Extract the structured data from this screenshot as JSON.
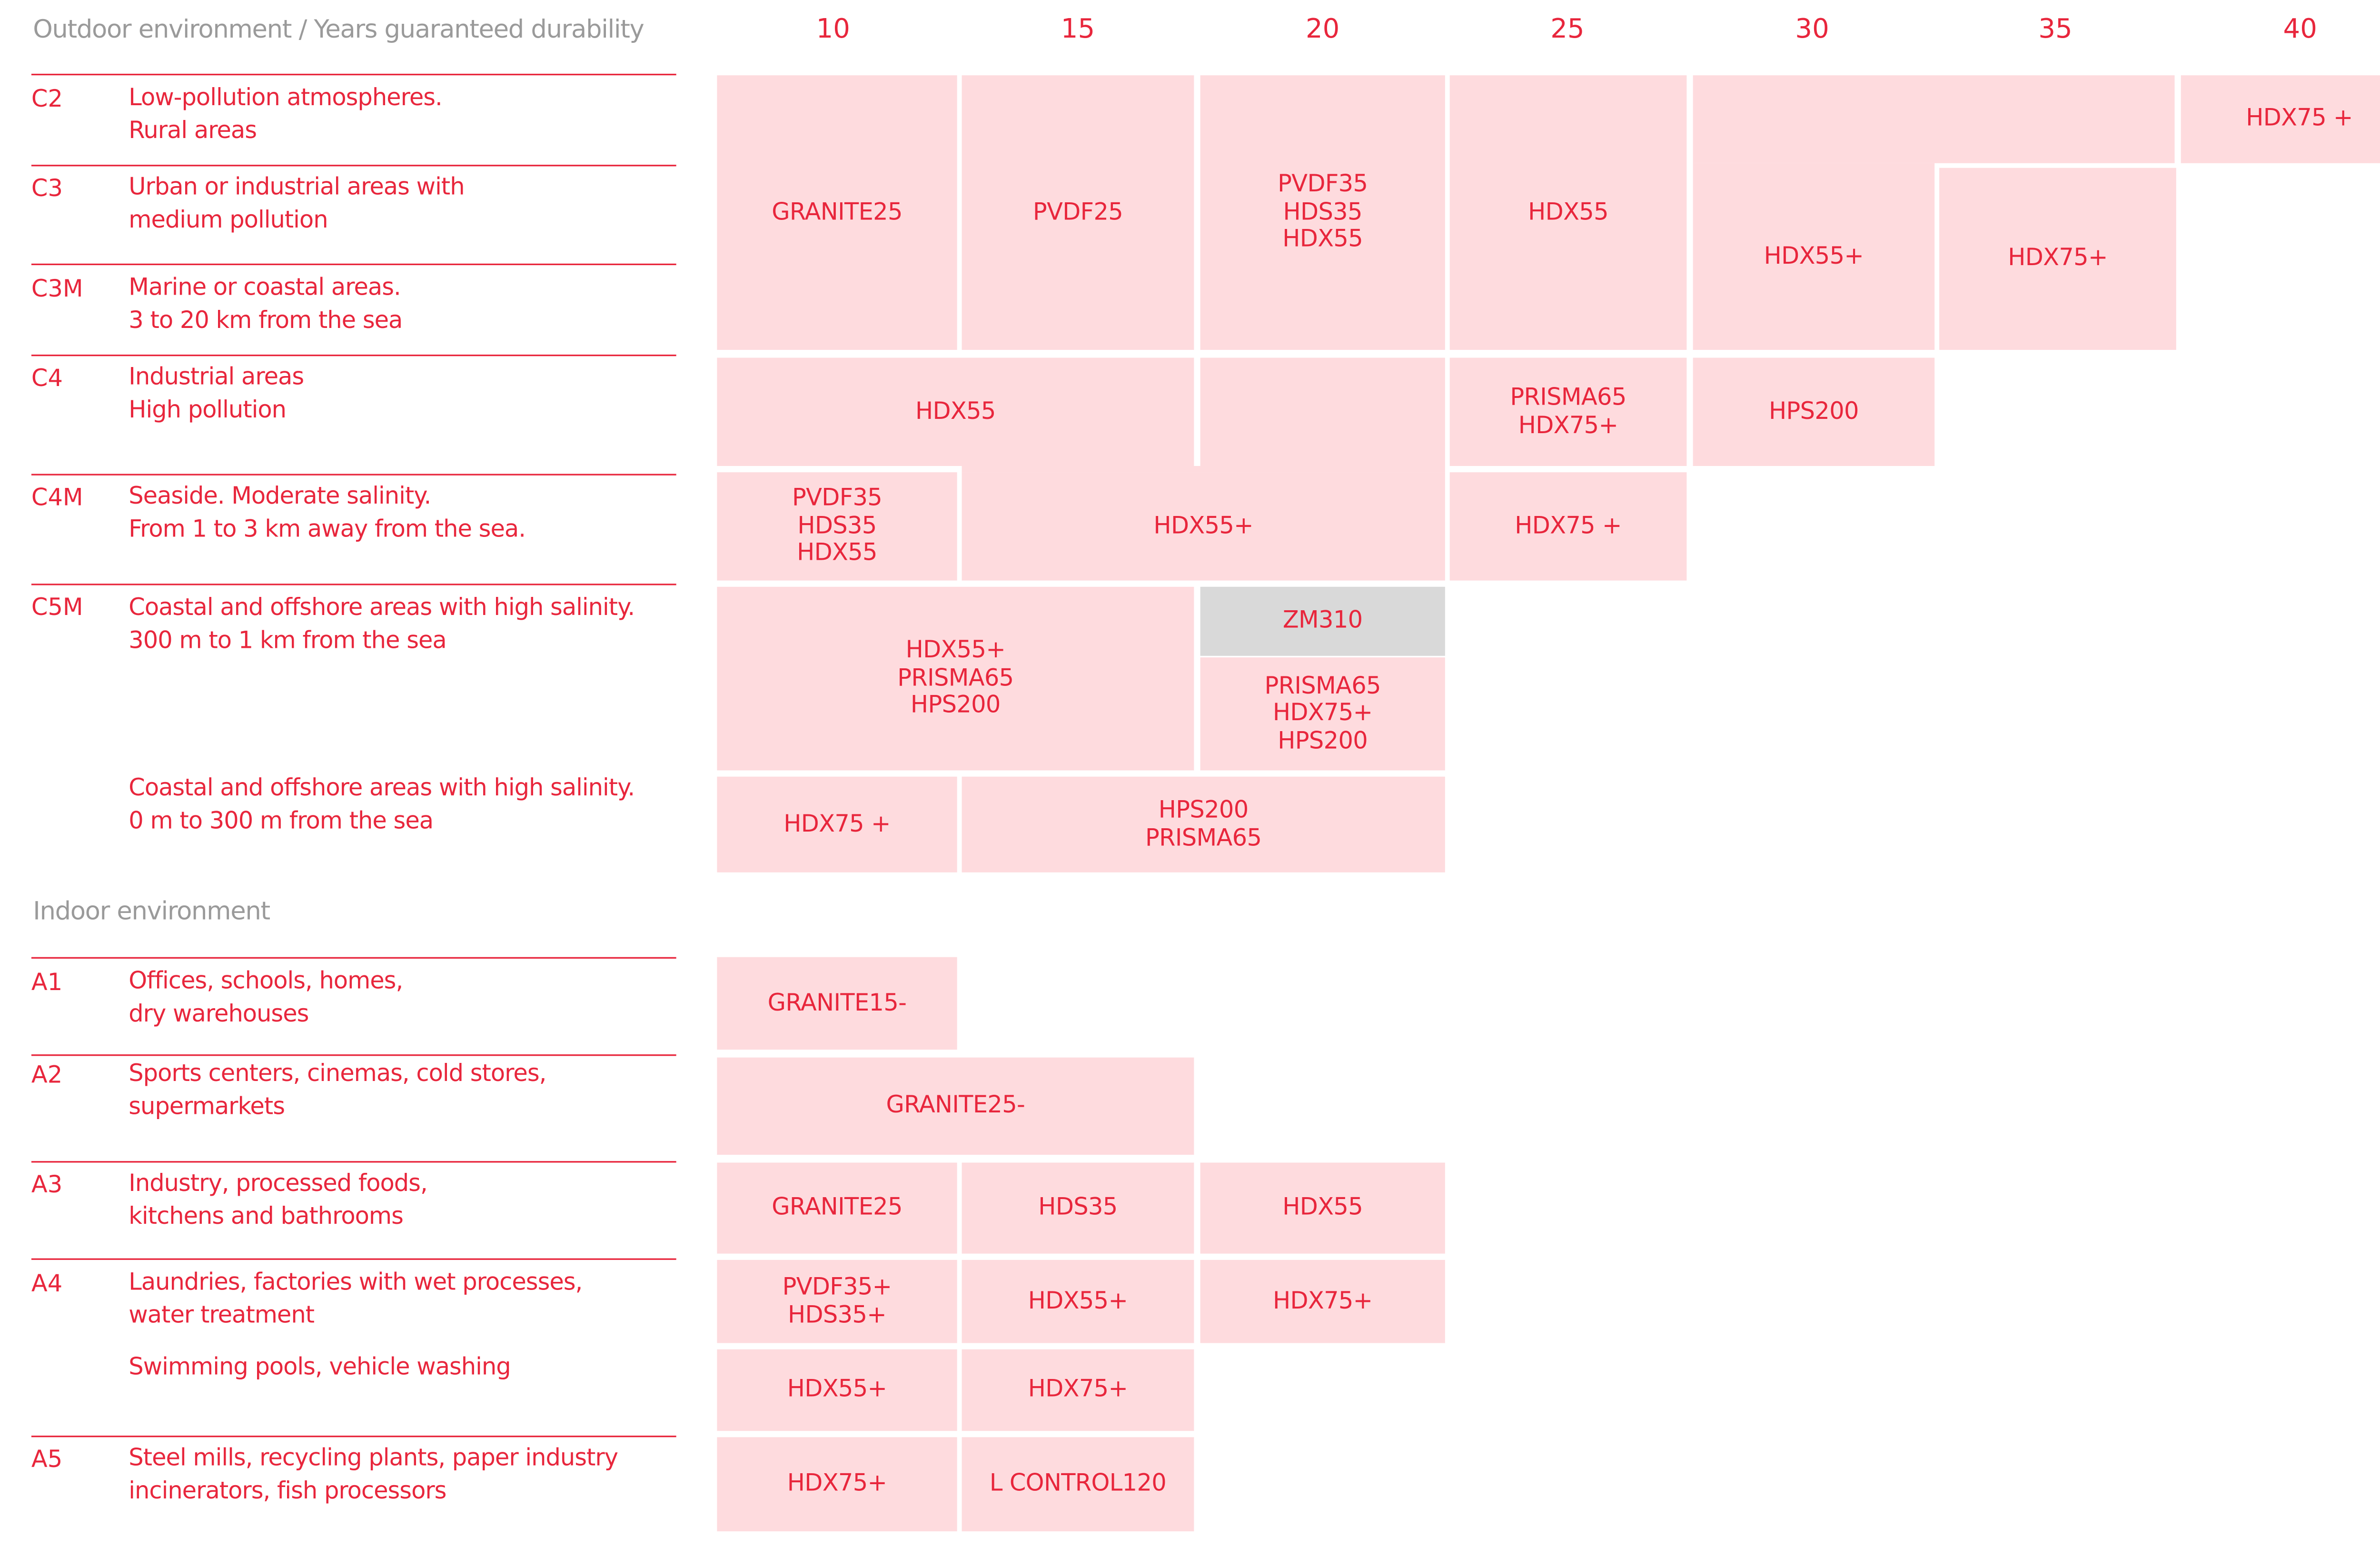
{
  "headers": {
    "outdoor": "Outdoor environment / Years guaranteed durability",
    "indoor": "Indoor environment",
    "years": [
      "10",
      "15",
      "20",
      "25",
      "30",
      "35",
      "40"
    ]
  },
  "rows": [
    {
      "code": "C2",
      "desc": "Low-pollution atmospheres.\nRural areas"
    },
    {
      "code": "C3",
      "desc": "Urban or industrial areas with\nmedium pollution"
    },
    {
      "code": "C3M",
      "desc": "Marine or coastal areas.\n3 to 20 km from the sea"
    },
    {
      "code": "C4",
      "desc": "Industrial areas\nHigh pollution"
    },
    {
      "code": "C4M",
      "desc": "Seaside. Moderate salinity.\nFrom 1 to 3 km away from the sea."
    },
    {
      "code": "C5M",
      "desc": "Coastal and offshore areas with high salinity.\n300 m to 1 km from the sea"
    },
    {
      "code": "",
      "desc": "Coastal and offshore areas with high salinity.\n0 m to 300 m from the sea"
    },
    {
      "code": "A1",
      "desc": "Offices, schools, homes,\ndry warehouses"
    },
    {
      "code": "A2",
      "desc": "Sports centers, cinemas, cold stores,\nsupermarkets"
    },
    {
      "code": "A3",
      "desc": "Industry, processed foods,\nkitchens and bathrooms"
    },
    {
      "code": "A4",
      "desc": "Laundries, factories with wet processes,\nwater treatment"
    },
    {
      "code": "",
      "desc": "Swimming pools, vehicle washing"
    },
    {
      "code": "A5",
      "desc": "Steel mills, recycling plants, paper industry\nincinerators, fish processors"
    }
  ],
  "cells": [
    {
      "text": "HDX75 +"
    },
    {
      "text": "GRANITE25"
    },
    {
      "text": "PVDF25"
    },
    {
      "text": "PVDF35\nHDS35\nHDX55"
    },
    {
      "text": "HDX55"
    },
    {
      "text": "HDX55+"
    },
    {
      "text": "HDX75+"
    },
    {
      "text": "HDX55"
    },
    {
      "text": "PRISMA65\nHDX75+"
    },
    {
      "text": "HPS200"
    },
    {
      "text": "PVDF35\nHDS35\nHDX55"
    },
    {
      "text": "HDX55+"
    },
    {
      "text": "HDX75 +"
    },
    {
      "text": "HDX55+\nPRISMA65\nHPS200"
    },
    {
      "text": "ZM310",
      "fill": "#d9d9d9"
    },
    {
      "text": "PRISMA65\nHDX75+\nHPS200"
    },
    {
      "text": "HDX75 +"
    },
    {
      "text": "HPS200\nPRISMA65"
    },
    {
      "text": "GRANITE15-"
    },
    {
      "text": "GRANITE25-"
    },
    {
      "text": "GRANITE25"
    },
    {
      "text": "HDS35"
    },
    {
      "text": "HDX55"
    },
    {
      "text": "PVDF35+\nHDS35+"
    },
    {
      "text": "HDX55+"
    },
    {
      "text": "HDX75+"
    },
    {
      "text": "HDX55+"
    },
    {
      "text": "HDX75+"
    },
    {
      "text": "HDX75+"
    },
    {
      "text": "L CONTROL120"
    }
  ],
  "colors": {
    "accent": "#e8263c",
    "cell_fill": "#fedbde",
    "neutral_fill": "#d9d9d9",
    "header_grey": "#9a9a9a"
  }
}
